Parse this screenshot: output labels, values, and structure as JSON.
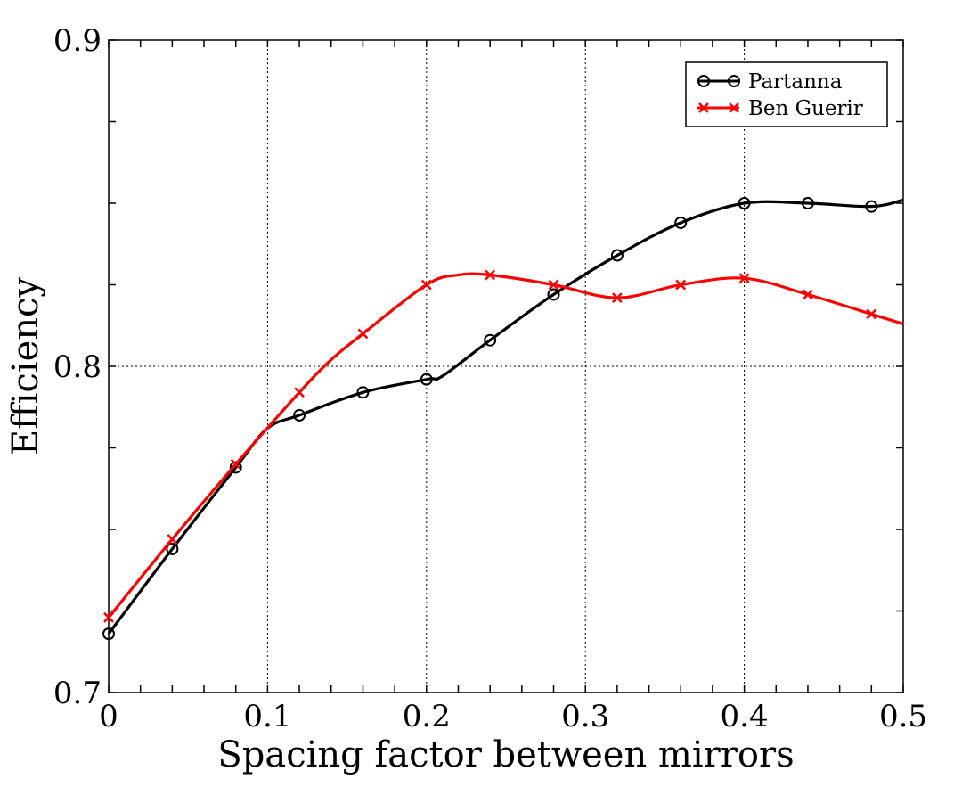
{
  "chart_data": {
    "type": "line",
    "title": "",
    "xlabel": "Spacing factor between mirrors",
    "ylabel": "Efficiency",
    "xlim": [
      0,
      0.5
    ],
    "ylim": [
      0.7,
      0.9
    ],
    "x_ticks": [
      0,
      0.1,
      0.2,
      0.3,
      0.4,
      0.5
    ],
    "x_tick_labels": [
      "0",
      "0.1",
      "0.2",
      "0.3",
      "0.4",
      "0.5"
    ],
    "y_ticks": [
      0.7,
      0.8,
      0.9
    ],
    "y_tick_labels": [
      "0.7",
      "0.8",
      "0.9"
    ],
    "grid": true,
    "legend_position": "top-right",
    "series": [
      {
        "name": "Partanna",
        "color": "#000000",
        "marker": "circle",
        "x": [
          0,
          0.04,
          0.08,
          0.12,
          0.16,
          0.2,
          0.24,
          0.28,
          0.32,
          0.36,
          0.4,
          0.44,
          0.48
        ],
        "y": [
          0.718,
          0.744,
          0.769,
          0.785,
          0.792,
          0.796,
          0.808,
          0.822,
          0.834,
          0.844,
          0.85,
          0.85,
          0.849
        ],
        "line_x": [
          0,
          0.04,
          0.08,
          0.1,
          0.12,
          0.16,
          0.2,
          0.21,
          0.24,
          0.28,
          0.32,
          0.36,
          0.4,
          0.44,
          0.48,
          0.5
        ],
        "line_y": [
          0.718,
          0.744,
          0.769,
          0.781,
          0.785,
          0.792,
          0.796,
          0.797,
          0.808,
          0.822,
          0.834,
          0.844,
          0.85,
          0.85,
          0.849,
          0.851
        ]
      },
      {
        "name": "Ben Guerir",
        "color": "#ff0000",
        "marker": "x",
        "x": [
          0,
          0.04,
          0.08,
          0.12,
          0.16,
          0.2,
          0.24,
          0.28,
          0.32,
          0.36,
          0.4,
          0.44,
          0.48
        ],
        "y": [
          0.723,
          0.747,
          0.77,
          0.792,
          0.81,
          0.825,
          0.828,
          0.825,
          0.821,
          0.825,
          0.827,
          0.822,
          0.816
        ],
        "line_x": [
          0,
          0.04,
          0.08,
          0.12,
          0.14,
          0.16,
          0.2,
          0.22,
          0.24,
          0.28,
          0.32,
          0.36,
          0.4,
          0.44,
          0.48,
          0.5
        ],
        "line_y": [
          0.723,
          0.747,
          0.77,
          0.792,
          0.802,
          0.81,
          0.825,
          0.828,
          0.828,
          0.825,
          0.821,
          0.825,
          0.827,
          0.822,
          0.816,
          0.813
        ]
      }
    ]
  }
}
